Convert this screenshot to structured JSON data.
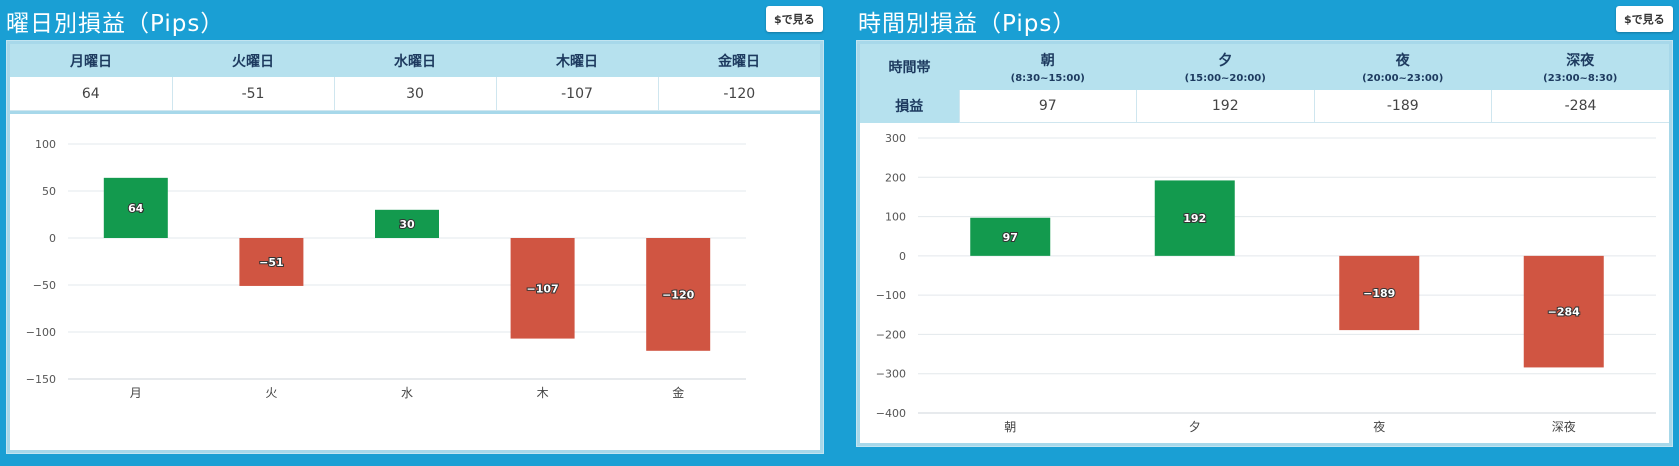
{
  "left_panel": {
    "title": "曜日別損益（Pips）",
    "usd_button_label": "$で見る",
    "table": {
      "headers": [
        "月曜日",
        "火曜日",
        "水曜日",
        "木曜日",
        "金曜日"
      ],
      "values": [
        "64",
        "-51",
        "30",
        "-107",
        "-120"
      ]
    }
  },
  "right_panel": {
    "title": "時間別損益（Pips）",
    "usd_button_label": "$で見る",
    "table": {
      "corner_label": "時間帯",
      "row_label": "損益",
      "headers": [
        {
          "name": "朝",
          "range": "(8:30~15:00)"
        },
        {
          "name": "夕",
          "range": "(15:00~20:00)"
        },
        {
          "name": "夜",
          "range": "(20:00~23:00)"
        },
        {
          "name": "深夜",
          "range": "(23:00~8:30)"
        }
      ],
      "values": [
        "97",
        "192",
        "-189",
        "-284"
      ]
    }
  },
  "colors": {
    "positive": "#139a4e",
    "negative": "#d05542",
    "grid": "#e3e8ec",
    "axis": "#cfd6db"
  },
  "chart_data": [
    {
      "type": "bar",
      "categories": [
        "月",
        "火",
        "水",
        "木",
        "金"
      ],
      "values": [
        64,
        -51,
        30,
        -107,
        -120
      ],
      "ylim": [
        -150,
        100
      ],
      "yticks": [
        100,
        50,
        0,
        -50,
        -100,
        -150
      ],
      "ytick_labels": [
        "100",
        "50",
        "0",
        "−50",
        "−100",
        "−150"
      ],
      "data_labels": [
        "64",
        "−51",
        "30",
        "−107",
        "−120"
      ],
      "grid": true
    },
    {
      "type": "bar",
      "categories": [
        "朝",
        "夕",
        "夜",
        "深夜"
      ],
      "values": [
        97,
        192,
        -189,
        -284
      ],
      "ylim": [
        -400,
        300
      ],
      "yticks": [
        300,
        200,
        100,
        0,
        -100,
        -200,
        -300,
        -400
      ],
      "ytick_labels": [
        "300",
        "200",
        "100",
        "0",
        "−100",
        "−200",
        "−300",
        "−400"
      ],
      "data_labels": [
        "97",
        "192",
        "−189",
        "−284"
      ],
      "grid": true
    }
  ]
}
